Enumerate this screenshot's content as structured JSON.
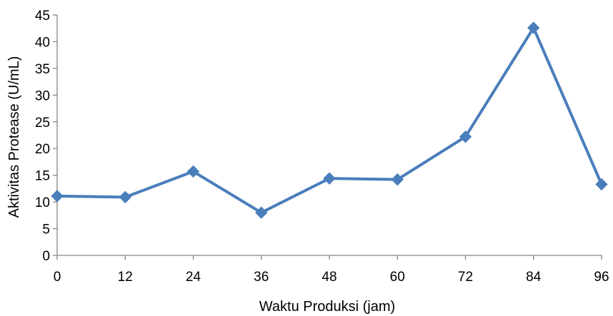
{
  "chart_data": {
    "type": "line",
    "title": "",
    "xlabel": "Waktu Produksi (jam)",
    "ylabel": "Aktivitas Protease (U/mL)",
    "x": [
      0,
      12,
      24,
      36,
      48,
      60,
      72,
      84,
      96
    ],
    "x_tick_labels": [
      "0",
      "12",
      "24",
      "36",
      "48",
      "60",
      "72",
      "84",
      "96"
    ],
    "y_tick_labels": [
      "0",
      "5",
      "10",
      "15",
      "20",
      "25",
      "30",
      "35",
      "40",
      "45"
    ],
    "xlim": [
      0,
      96
    ],
    "ylim": [
      0,
      45
    ],
    "grid": false,
    "legend": "none",
    "series": [
      {
        "values": [
          11.1,
          10.9,
          15.7,
          8.0,
          14.4,
          14.2,
          22.2,
          42.6,
          13.3
        ],
        "color": "#4a7ebb",
        "marker": "diamond"
      }
    ]
  }
}
